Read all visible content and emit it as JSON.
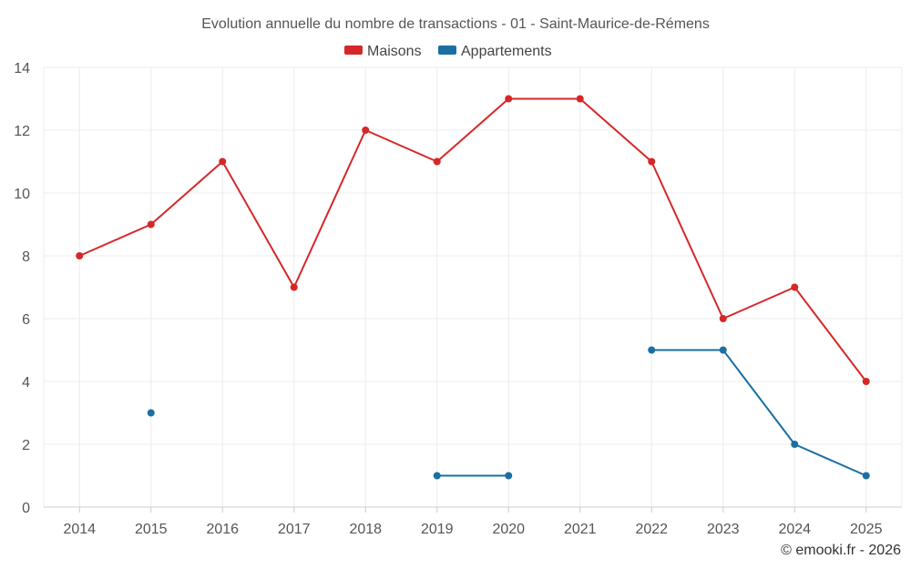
{
  "chart_data": {
    "type": "line",
    "title": "Evolution annuelle du nombre de transactions - 01 - Saint-Maurice-de-Rémens",
    "categories": [
      "2014",
      "2015",
      "2016",
      "2017",
      "2018",
      "2019",
      "2020",
      "2021",
      "2022",
      "2023",
      "2024",
      "2025"
    ],
    "ylim": [
      0,
      14
    ],
    "yticks": [
      0,
      2,
      4,
      6,
      8,
      10,
      12,
      14
    ],
    "grid": true,
    "legend_position": "top-center",
    "series": [
      {
        "name": "Maisons",
        "color": "#d62728",
        "values": [
          8,
          9,
          11,
          7,
          12,
          11,
          13,
          13,
          11,
          6,
          7,
          4
        ]
      },
      {
        "name": "Appartements",
        "color": "#1a6fa3",
        "values": [
          null,
          3,
          null,
          null,
          null,
          1,
          1,
          null,
          5,
          5,
          2,
          1
        ]
      }
    ],
    "credit": "© emooki.fr - 2026"
  }
}
